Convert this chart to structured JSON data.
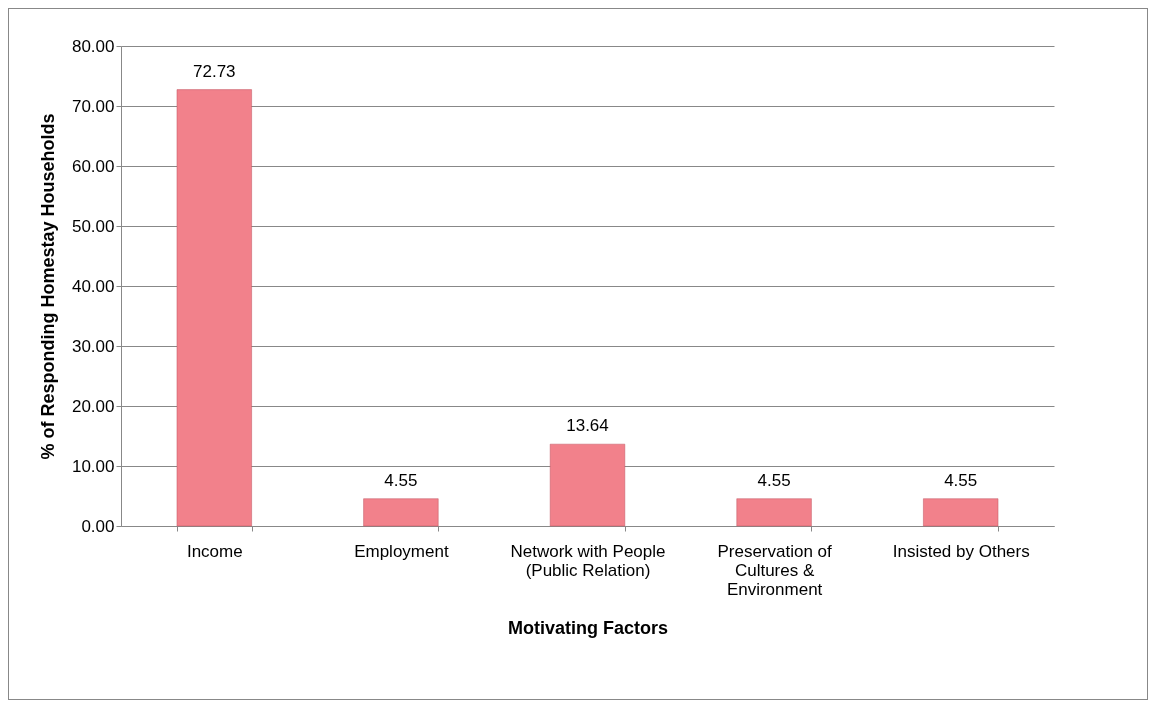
{
  "chart_data": {
    "type": "bar",
    "xlabel": "Motivating Factors",
    "ylabel": "% of Responding Homestay Households",
    "categories": [
      "Income",
      "Employment",
      "Network with People (Public Relation)",
      "Preservation of Cultures & Environment",
      "Insisted by Others"
    ],
    "values": [
      72.73,
      4.55,
      13.64,
      4.55,
      4.55
    ],
    "color": "#f2818b",
    "ylim": [
      0,
      80
    ],
    "yticks": [
      {
        "value": 0,
        "label": "0.00"
      },
      {
        "value": 10,
        "label": "10.00"
      },
      {
        "value": 20,
        "label": "20.00"
      },
      {
        "value": 30,
        "label": "30.00"
      },
      {
        "value": 40,
        "label": "40.00"
      },
      {
        "value": 50,
        "label": "50.00"
      },
      {
        "value": 60,
        "label": "60.00"
      },
      {
        "value": 70,
        "label": "70.00"
      },
      {
        "value": 80,
        "label": "80.00"
      }
    ],
    "grid": "y",
    "data_labels": true
  }
}
